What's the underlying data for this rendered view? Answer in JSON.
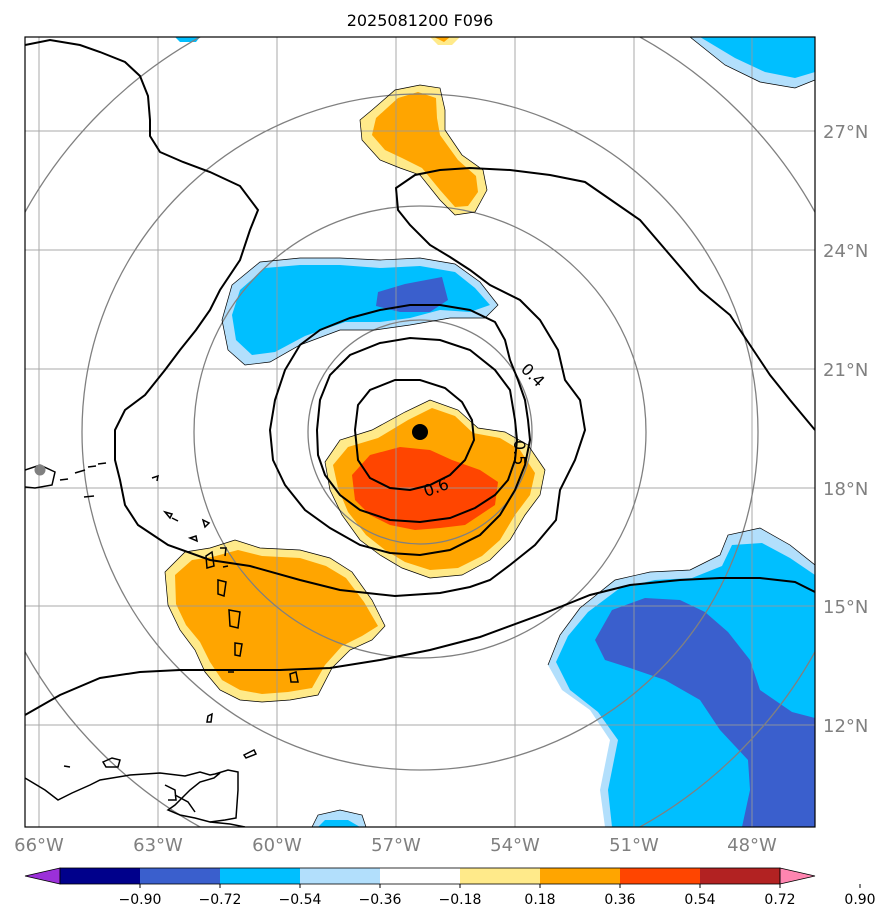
{
  "title": "2025081200 F096",
  "map": {
    "lon_ticks": [
      "66°W",
      "63°W",
      "60°W",
      "57°W",
      "54°W",
      "51°W",
      "48°W"
    ],
    "lat_ticks": [
      "27°N",
      "24°N",
      "21°N",
      "18°N",
      "15°N",
      "12°N"
    ],
    "contour_labels": [
      "0.4",
      "0.5",
      "0.6"
    ],
    "storm_center": {
      "lon": -56.7,
      "lat": 19.4
    }
  },
  "colorbar": {
    "ticks": [
      "−0.90",
      "−0.72",
      "−0.54",
      "−0.36",
      "−0.18",
      "0.18",
      "0.36",
      "0.54",
      "0.72",
      "0.90"
    ],
    "colors": [
      "#9b30d9",
      "#00008b",
      "#3a5fcd",
      "#00bfff",
      "#b2dffc",
      "#ffffff",
      "#ffea8a",
      "#ffa500",
      "#ff4500",
      "#b22222",
      "#ff85b0"
    ]
  },
  "colors": {
    "pos_light": "#ffea8a",
    "pos_mid": "#ffa500",
    "pos_strong": "#ff4500",
    "neg_light": "#b2dffc",
    "neg_mid": "#00bfff",
    "neg_strong": "#3a5fcd",
    "grid": "#999999",
    "ring": "#808080",
    "tick_label": "#808080"
  }
}
